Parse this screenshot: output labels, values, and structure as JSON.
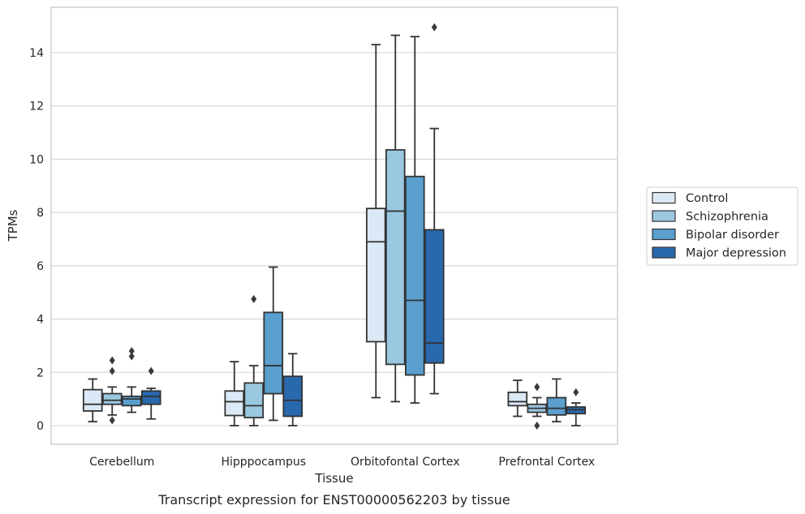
{
  "caption": "Transcript expression for ENST00000562203 by tissue",
  "chart_data": {
    "type": "box",
    "xlabel": "Tissue",
    "ylabel": "TPMs",
    "ylim": [
      -0.7,
      15.7
    ],
    "yticks": [
      0,
      2,
      4,
      6,
      8,
      10,
      12,
      14
    ],
    "grid": "horizontal",
    "legend_position": "right",
    "categories": [
      "Cerebellum",
      "Hipppocampus",
      "Orbitofontal Cortex",
      "Prefrontal Cortex"
    ],
    "series": [
      {
        "name": "Control",
        "color": "#dbe9f6",
        "boxes": [
          {
            "whislo": 0.15,
            "q1": 0.55,
            "med": 0.8,
            "q3": 1.35,
            "whishi": 1.75,
            "fliers": []
          },
          {
            "whislo": 0.0,
            "q1": 0.38,
            "med": 0.9,
            "q3": 1.3,
            "whishi": 2.4,
            "fliers": []
          },
          {
            "whislo": 1.05,
            "q1": 3.15,
            "med": 6.9,
            "q3": 8.15,
            "whishi": 14.3,
            "fliers": []
          },
          {
            "whislo": 0.35,
            "q1": 0.75,
            "med": 0.9,
            "q3": 1.25,
            "whishi": 1.7,
            "fliers": []
          }
        ]
      },
      {
        "name": "Schizophrenia",
        "color": "#9ac8e0",
        "boxes": [
          {
            "whislo": 0.4,
            "q1": 0.8,
            "med": 0.95,
            "q3": 1.2,
            "whishi": 1.45,
            "fliers": [
              2.05,
              2.45,
              0.2
            ]
          },
          {
            "whislo": 0.0,
            "q1": 0.3,
            "med": 0.75,
            "q3": 1.6,
            "whishi": 2.25,
            "fliers": [
              4.75
            ]
          },
          {
            "whislo": 0.9,
            "q1": 2.3,
            "med": 8.05,
            "q3": 10.35,
            "whishi": 14.65,
            "fliers": []
          },
          {
            "whislo": 0.35,
            "q1": 0.5,
            "med": 0.65,
            "q3": 0.8,
            "whishi": 1.05,
            "fliers": [
              1.45,
              0.0
            ]
          }
        ]
      },
      {
        "name": "Bipolar disorder",
        "color": "#5a9fcd",
        "boxes": [
          {
            "whislo": 0.5,
            "q1": 0.75,
            "med": 1.0,
            "q3": 1.1,
            "whishi": 1.45,
            "fliers": [
              2.6,
              2.8
            ]
          },
          {
            "whislo": 0.2,
            "q1": 1.2,
            "med": 2.25,
            "q3": 4.25,
            "whishi": 5.95,
            "fliers": []
          },
          {
            "whislo": 0.85,
            "q1": 1.9,
            "med": 4.7,
            "q3": 9.35,
            "whishi": 14.6,
            "fliers": []
          },
          {
            "whislo": 0.15,
            "q1": 0.4,
            "med": 0.65,
            "q3": 1.05,
            "whishi": 1.75,
            "fliers": []
          }
        ]
      },
      {
        "name": "Major depression",
        "color": "#2a68ad",
        "boxes": [
          {
            "whislo": 0.25,
            "q1": 0.8,
            "med": 1.1,
            "q3": 1.3,
            "whishi": 1.4,
            "fliers": [
              2.05
            ]
          },
          {
            "whislo": 0.0,
            "q1": 0.35,
            "med": 0.95,
            "q3": 1.85,
            "whishi": 2.7,
            "fliers": []
          },
          {
            "whislo": 1.2,
            "q1": 2.35,
            "med": 3.1,
            "q3": 7.35,
            "whishi": 11.15,
            "fliers": [
              14.95
            ]
          },
          {
            "whislo": 0.0,
            "q1": 0.45,
            "med": 0.6,
            "q3": 0.7,
            "whishi": 0.85,
            "fliers": [
              1.25
            ]
          }
        ]
      }
    ]
  }
}
